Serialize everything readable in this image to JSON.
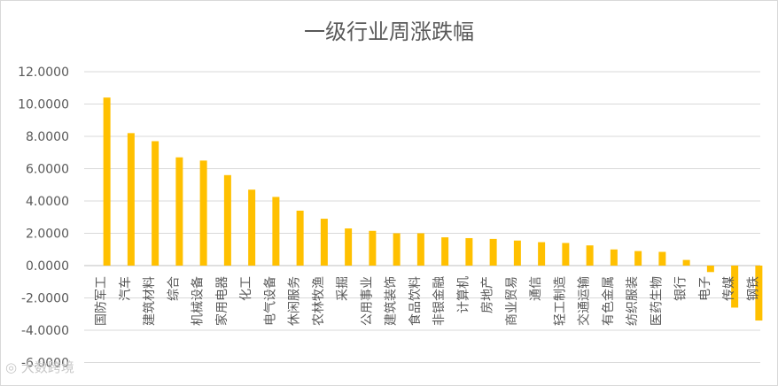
{
  "chart_data": {
    "type": "bar",
    "title": "一级行业周涨跌幅",
    "xlabel": "",
    "ylabel": "",
    "ylim": [
      -6,
      12
    ],
    "yticks": [
      "12.0000",
      "10.0000",
      "8.0000",
      "6.0000",
      "4.0000",
      "2.0000",
      "0.0000",
      "-2.0000",
      "-4.0000",
      "-6.0000"
    ],
    "grid": true,
    "legend": "none",
    "bar_color": "#FFC000",
    "categories": [
      "国防军工",
      "汽车",
      "建筑材料",
      "综合",
      "机械设备",
      "家用电器",
      "化工",
      "电气设备",
      "休闲服务",
      "农林牧渔",
      "采掘",
      "公用事业",
      "建筑装饰",
      "食品饮料",
      "非银金融",
      "计算机",
      "房地产",
      "商业贸易",
      "通信",
      "轻工制造",
      "交通运输",
      "有色金属",
      "纺织服装",
      "医药生物",
      "银行",
      "电子",
      "传媒",
      "钢铁"
    ],
    "values": [
      10.4,
      8.2,
      7.7,
      6.7,
      6.5,
      5.6,
      4.7,
      4.25,
      3.4,
      2.9,
      2.3,
      2.15,
      2.0,
      2.0,
      1.75,
      1.7,
      1.65,
      1.55,
      1.45,
      1.4,
      1.25,
      1.0,
      0.9,
      0.85,
      0.35,
      -0.4,
      -2.6,
      -3.4
    ]
  },
  "watermark": "大数跨境"
}
